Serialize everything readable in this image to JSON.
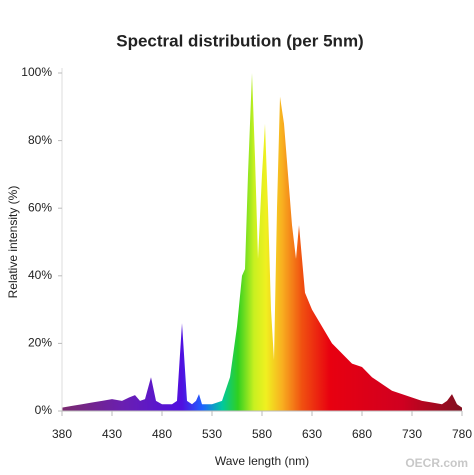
{
  "chart_data": {
    "type": "area",
    "title": "Spectral distribution (per 5nm)",
    "x_label": "Wave length (nm)",
    "y_label": "Relative intensity (%)",
    "watermark": "OECR.com",
    "x": [
      380,
      390,
      400,
      410,
      420,
      430,
      440,
      447,
      453,
      458,
      463,
      469,
      474,
      480,
      490,
      495,
      500,
      505,
      510,
      514,
      517,
      520,
      530,
      540,
      548,
      555,
      560,
      563,
      566,
      570,
      573,
      576,
      580,
      583,
      586,
      589,
      592,
      595,
      598,
      602,
      606,
      610,
      614,
      617,
      620,
      623,
      630,
      640,
      650,
      660,
      670,
      680,
      690,
      700,
      710,
      720,
      730,
      740,
      750,
      760,
      765,
      770,
      775,
      780
    ],
    "values": [
      1,
      1.5,
      2,
      2.5,
      3,
      3.5,
      3,
      4,
      4.7,
      3,
      3.5,
      10,
      3,
      2,
      2,
      3,
      26,
      3,
      2,
      3,
      5,
      2,
      2,
      3,
      10,
      25,
      40,
      42,
      70,
      100,
      75,
      45,
      70,
      85,
      60,
      30,
      15,
      60,
      93,
      85,
      70,
      55,
      45,
      55,
      45,
      35,
      30,
      25,
      20,
      17,
      14,
      13,
      10,
      8,
      6,
      5,
      4,
      3,
      2.5,
      2,
      3,
      5,
      2,
      1
    ],
    "xlim": [
      380,
      780
    ],
    "xticks": [
      380,
      430,
      480,
      530,
      580,
      630,
      680,
      730,
      780
    ],
    "ylim": [
      0,
      100
    ],
    "yticks": [
      {
        "value": 0,
        "label": "0%"
      },
      {
        "value": 20,
        "label": "20%"
      },
      {
        "value": 40,
        "label": "40%"
      },
      {
        "value": 60,
        "label": "60%"
      },
      {
        "value": 80,
        "label": "80%"
      },
      {
        "value": 100,
        "label": "100%"
      }
    ]
  }
}
